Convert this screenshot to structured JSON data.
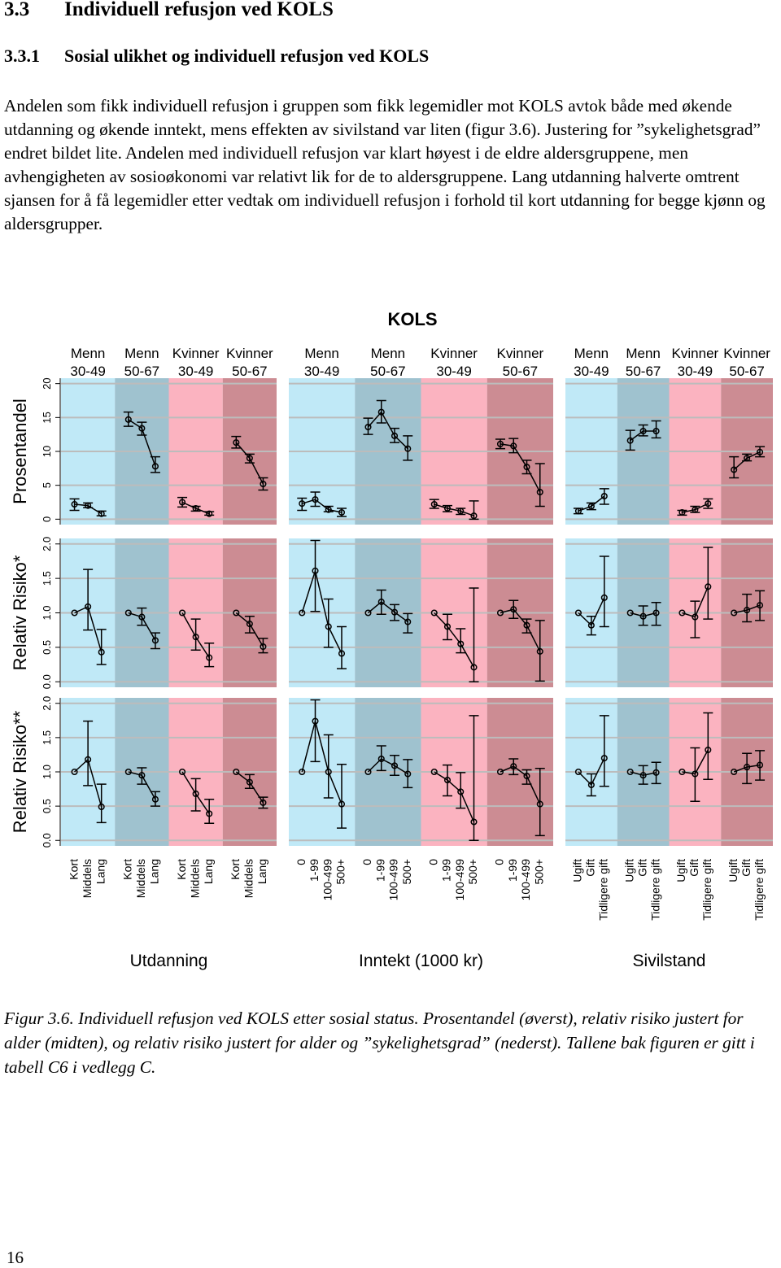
{
  "header": {
    "number": "3.3",
    "title": "Individuell refusjon ved KOLS"
  },
  "subheader": {
    "number": "3.3.1",
    "title": "Sosial ulikhet og individuell refusjon ved KOLS"
  },
  "paragraph": "Andelen som fikk individuell refusjon i gruppen som fikk legemidler mot KOLS avtok både med økende utdanning og økende inntekt, mens effekten av sivilstand var liten (figur 3.6). Justering for ”sykelighetsgrad” endret bildet lite. Andelen med individuell refusjon var klart høyest i de eldre aldersgruppene, men avhengigheten av sosioøkonomi var relativt lik for de to aldersgruppene. Lang utdanning halverte omtrent sjansen for å få legemidler etter vedtak om individuell refusjon i forhold til kort utdanning for begge kjønn og aldersgrupper.",
  "chart_data": {
    "type": "errorbar",
    "title": "KOLS",
    "grid": true,
    "groups": [
      {
        "name": "Utdanning",
        "categories": [
          "Kort",
          "Middels",
          "Lang"
        ],
        "panels": [
          {
            "sex": "Menn",
            "age": "30-49",
            "color": "#c0e9f7"
          },
          {
            "sex": "Menn",
            "age": "50-67",
            "color": "#9fc2cf"
          },
          {
            "sex": "Kvinner",
            "age": "30-49",
            "color": "#fbb3c0"
          },
          {
            "sex": "Kvinner",
            "age": "50-67",
            "color": "#cc8c93"
          }
        ]
      },
      {
        "name": "Inntekt (1000 kr)",
        "categories": [
          "0",
          "1-99",
          "100-499",
          "500+"
        ],
        "panels": [
          {
            "sex": "Menn",
            "age": "30-49",
            "color": "#c0e9f7"
          },
          {
            "sex": "Menn",
            "age": "50-67",
            "color": "#9fc2cf"
          },
          {
            "sex": "Kvinner",
            "age": "30-49",
            "color": "#fbb3c0"
          },
          {
            "sex": "Kvinner",
            "age": "50-67",
            "color": "#cc8c93"
          }
        ]
      },
      {
        "name": "Sivilstand",
        "categories": [
          "Ugift",
          "Gift",
          "Tidligere gift"
        ],
        "panels": [
          {
            "sex": "Menn",
            "age": "30-49",
            "color": "#c0e9f7"
          },
          {
            "sex": "Menn",
            "age": "50-67",
            "color": "#9fc2cf"
          },
          {
            "sex": "Kvinner",
            "age": "30-49",
            "color": "#fbb3c0"
          },
          {
            "sex": "Kvinner",
            "age": "50-67",
            "color": "#cc8c93"
          }
        ]
      }
    ],
    "rows": [
      {
        "ylabel": "Prosentandel",
        "ylim": [
          -0.8,
          20.8
        ],
        "yticks": [
          0,
          5,
          10,
          15,
          20
        ],
        "data": [
          [
            {
              "values": [
                2.2,
                2.0,
                0.8
              ],
              "lower": [
                1.3,
                1.7,
                0.5
              ],
              "upper": [
                3.0,
                2.4,
                1.2
              ]
            },
            {
              "values": [
                14.7,
                13.4,
                7.8
              ],
              "lower": [
                13.7,
                12.4,
                6.9
              ],
              "upper": [
                15.8,
                14.3,
                9.2
              ]
            },
            {
              "values": [
                2.5,
                1.6,
                0.8
              ],
              "lower": [
                1.8,
                1.2,
                0.6
              ],
              "upper": [
                3.2,
                1.9,
                1.1
              ]
            },
            {
              "values": [
                11.3,
                9.0,
                5.2
              ],
              "lower": [
                10.5,
                8.3,
                4.3
              ],
              "upper": [
                12.2,
                9.6,
                6.1
              ]
            }
          ],
          [
            {
              "values": [
                2.3,
                2.9,
                1.4,
                1.0
              ],
              "lower": [
                1.3,
                1.9,
                1.1,
                0.4
              ],
              "upper": [
                3.1,
                4.0,
                1.9,
                1.6
              ]
            },
            {
              "values": [
                13.6,
                15.8,
                12.3,
                10.4
              ],
              "lower": [
                12.5,
                14.2,
                11.3,
                8.7
              ],
              "upper": [
                14.9,
                17.5,
                13.4,
                12.3
              ]
            },
            {
              "values": [
                2.2,
                1.6,
                1.2,
                0.5
              ],
              "lower": [
                1.6,
                1.1,
                0.7,
                0.0
              ],
              "upper": [
                2.9,
                2.0,
                1.6,
                2.7
              ]
            },
            {
              "values": [
                11.1,
                10.8,
                7.7,
                4.0
              ],
              "lower": [
                10.4,
                9.8,
                6.7,
                1.9
              ],
              "upper": [
                11.8,
                11.9,
                8.7,
                8.2
              ]
            }
          ],
          [
            {
              "values": [
                1.2,
                1.9,
                3.4
              ],
              "lower": [
                0.8,
                1.4,
                2.2
              ],
              "upper": [
                1.6,
                2.4,
                4.5
              ]
            },
            {
              "values": [
                11.6,
                13.0,
                13.0
              ],
              "lower": [
                10.2,
                12.3,
                12.0
              ],
              "upper": [
                13.1,
                13.9,
                14.5
              ]
            },
            {
              "values": [
                1.0,
                1.4,
                2.3
              ],
              "lower": [
                0.6,
                1.0,
                1.6
              ],
              "upper": [
                1.3,
                1.9,
                3.0
              ]
            },
            {
              "values": [
                7.3,
                9.0,
                9.9
              ],
              "lower": [
                6.1,
                8.6,
                9.2
              ],
              "upper": [
                9.2,
                9.6,
                10.7
              ]
            }
          ]
        ]
      },
      {
        "ylabel": "Relativ Risiko*",
        "ylim": [
          -0.08,
          2.08
        ],
        "yticks": [
          {
            "value": 0,
            "label": "0.0"
          },
          0.5,
          {
            "value": 1,
            "label": "1.0"
          },
          1.5,
          {
            "value": 2,
            "label": "2.0"
          }
        ],
        "data": [
          [
            {
              "values": [
                1,
                1.09,
                0.43
              ],
              "lower": [
                null,
                0.75,
                0.25
              ],
              "upper": [
                null,
                1.63,
                0.76
              ]
            },
            {
              "values": [
                1,
                0.94,
                0.6
              ],
              "lower": [
                null,
                0.82,
                0.48
              ],
              "upper": [
                null,
                1.07,
                0.71
              ]
            },
            {
              "values": [
                1,
                0.65,
                0.35
              ],
              "lower": [
                null,
                0.46,
                0.22
              ],
              "upper": [
                null,
                0.91,
                0.56
              ]
            },
            {
              "values": [
                1,
                0.84,
                0.51
              ],
              "lower": [
                null,
                0.71,
                0.42
              ],
              "upper": [
                null,
                0.95,
                0.63
              ]
            }
          ],
          [
            {
              "values": [
                1,
                1.61,
                0.8,
                0.41
              ],
              "lower": [
                null,
                1.02,
                0.5,
                0.19
              ],
              "upper": [
                null,
                2.05,
                1.2,
                0.8
              ]
            },
            {
              "values": [
                1,
                1.16,
                1.01,
                0.87
              ],
              "lower": [
                null,
                0.98,
                0.89,
                0.71
              ],
              "upper": [
                null,
                1.33,
                1.12,
                0.99
              ]
            },
            {
              "values": [
                1,
                0.8,
                0.55,
                0.21
              ],
              "lower": [
                null,
                0.61,
                0.42,
                0.0
              ],
              "upper": [
                null,
                0.98,
                0.77,
                1.36
              ]
            },
            {
              "values": [
                1,
                1.05,
                0.82,
                0.44
              ],
              "lower": [
                null,
                0.92,
                0.71,
                0.01
              ],
              "upper": [
                null,
                1.18,
                0.91,
                0.89
              ]
            }
          ],
          [
            {
              "values": [
                1,
                0.82,
                1.22
              ],
              "lower": [
                null,
                0.68,
                0.8
              ],
              "upper": [
                null,
                0.95,
                1.82
              ]
            },
            {
              "values": [
                1,
                0.95,
                1.0
              ],
              "lower": [
                null,
                0.82,
                0.82
              ],
              "upper": [
                null,
                1.1,
                1.15
              ]
            },
            {
              "values": [
                1,
                0.94,
                1.38
              ],
              "lower": [
                null,
                0.64,
                0.91
              ],
              "upper": [
                null,
                1.17,
                1.95
              ]
            },
            {
              "values": [
                1,
                1.04,
                1.11
              ],
              "lower": [
                null,
                0.87,
                0.89
              ],
              "upper": [
                null,
                1.27,
                1.32
              ]
            }
          ]
        ]
      },
      {
        "ylabel": "Relativ Risiko**",
        "ylim": [
          -0.08,
          2.08
        ],
        "yticks": [
          {
            "value": 0,
            "label": "0.0"
          },
          0.5,
          {
            "value": 1,
            "label": "1.0"
          },
          1.5,
          {
            "value": 2,
            "label": "2.0"
          }
        ],
        "data": [
          [
            {
              "values": [
                1,
                1.18,
                0.49
              ],
              "lower": [
                null,
                0.8,
                0.26
              ],
              "upper": [
                null,
                1.74,
                0.82
              ]
            },
            {
              "values": [
                1,
                0.95,
                0.6
              ],
              "lower": [
                null,
                0.82,
                0.5
              ],
              "upper": [
                null,
                1.06,
                0.71
              ]
            },
            {
              "values": [
                1,
                0.68,
                0.39
              ],
              "lower": [
                null,
                0.43,
                0.25
              ],
              "upper": [
                null,
                0.9,
                0.6
              ]
            },
            {
              "values": [
                1,
                0.85,
                0.55
              ],
              "lower": [
                null,
                0.76,
                0.47
              ],
              "upper": [
                null,
                0.96,
                0.63
              ]
            }
          ],
          [
            {
              "values": [
                1,
                1.74,
                1.0,
                0.53
              ],
              "lower": [
                null,
                1.15,
                0.62,
                0.18
              ],
              "upper": [
                null,
                2.05,
                1.54,
                1.11
              ]
            },
            {
              "values": [
                1,
                1.19,
                1.09,
                0.97
              ],
              "lower": [
                null,
                1.02,
                0.95,
                0.77
              ],
              "upper": [
                null,
                1.38,
                1.24,
                1.18
              ]
            },
            {
              "values": [
                1,
                0.88,
                0.71,
                0.27
              ],
              "lower": [
                null,
                0.65,
                0.47,
                0.0
              ],
              "upper": [
                null,
                1.1,
                0.99,
                1.82
              ]
            },
            {
              "values": [
                1,
                1.08,
                0.94,
                0.53
              ],
              "lower": [
                null,
                0.96,
                0.82,
                0.07
              ],
              "upper": [
                null,
                1.19,
                1.03,
                1.05
              ]
            }
          ],
          [
            {
              "values": [
                1,
                0.81,
                1.2
              ],
              "lower": [
                null,
                0.65,
                0.79
              ],
              "upper": [
                null,
                0.97,
                1.82
              ]
            },
            {
              "values": [
                1,
                0.95,
                0.99
              ],
              "lower": [
                null,
                0.82,
                0.83
              ],
              "upper": [
                null,
                1.09,
                1.14
              ]
            },
            {
              "values": [
                1,
                0.97,
                1.32
              ],
              "lower": [
                null,
                0.57,
                0.89
              ],
              "upper": [
                null,
                1.35,
                1.86
              ]
            },
            {
              "values": [
                1,
                1.07,
                1.1
              ],
              "lower": [
                null,
                0.83,
                0.88
              ],
              "upper": [
                null,
                1.27,
                1.31
              ]
            }
          ]
        ]
      }
    ]
  },
  "caption": "Figur 3.6. Individuell refusjon ved KOLS etter sosial status. Prosentandel (øverst), relativ risiko justert for alder (midten), og relativ risiko justert for alder og ”sykelighetsgrad” (nederst). Tallene bak figuren er gitt i tabell C6 i vedlegg C.",
  "page_number": "16"
}
